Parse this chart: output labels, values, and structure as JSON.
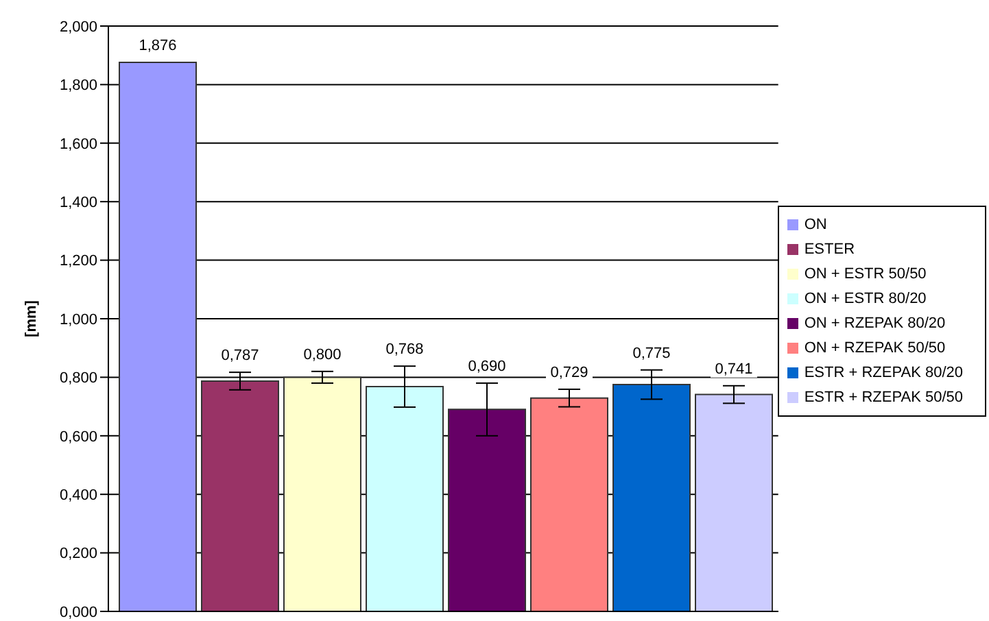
{
  "chart_data": {
    "type": "bar",
    "ylabel": "[mm]",
    "categories": [
      null
    ],
    "series": [
      {
        "name": "ON",
        "color": "#9999ff",
        "values": [
          1.876
        ],
        "value_labels": [
          "1,876"
        ]
      },
      {
        "name": "ESTER",
        "color": "#993366",
        "values": [
          0.787
        ],
        "value_labels": [
          "0,787"
        ],
        "errors": [
          0.03
        ]
      },
      {
        "name": "ON + ESTR 50/50",
        "color": "#ffffcc",
        "values": [
          0.8
        ],
        "value_labels": [
          "0,800"
        ],
        "errors": [
          0.02
        ]
      },
      {
        "name": "ON + ESTR 80/20",
        "color": "#ccffff",
        "values": [
          0.768
        ],
        "value_labels": [
          "0,768"
        ],
        "errors": [
          0.07
        ]
      },
      {
        "name": "ON + RZEPAK 80/20",
        "color": "#660066",
        "values": [
          0.69
        ],
        "value_labels": [
          "0,690"
        ],
        "errors": [
          0.09
        ]
      },
      {
        "name": "ON + RZEPAK 50/50",
        "color": "#ff8080",
        "values": [
          0.729
        ],
        "value_labels": [
          "0,729"
        ],
        "errors": [
          0.03
        ]
      },
      {
        "name": "ESTR + RZEPAK 80/20",
        "color": "#0066cc",
        "values": [
          0.775
        ],
        "value_labels": [
          "0,775"
        ],
        "errors": [
          0.05
        ]
      },
      {
        "name": "ESTR + RZEPAK 50/50",
        "color": "#ccccff",
        "values": [
          0.741
        ],
        "value_labels": [
          "0,741"
        ],
        "errors": [
          0.03
        ]
      }
    ],
    "ylim": [
      0,
      2
    ],
    "yticks": [
      {
        "value": 0,
        "label": "0,000"
      },
      {
        "value": 0.2,
        "label": "0,200"
      },
      {
        "value": 0.4,
        "label": "0,400"
      },
      {
        "value": 0.6,
        "label": "0,600"
      },
      {
        "value": 0.8,
        "label": "0,800"
      },
      {
        "value": 1,
        "label": "1,000"
      },
      {
        "value": 1.2,
        "label": "1,200"
      },
      {
        "value": 1.4,
        "label": "1,400"
      },
      {
        "value": 1.6,
        "label": "1,600"
      },
      {
        "value": 1.8,
        "label": "1,800"
      },
      {
        "value": 2,
        "label": "2,000"
      }
    ],
    "grid": "y",
    "legend": "right",
    "tick_labels": "y"
  }
}
